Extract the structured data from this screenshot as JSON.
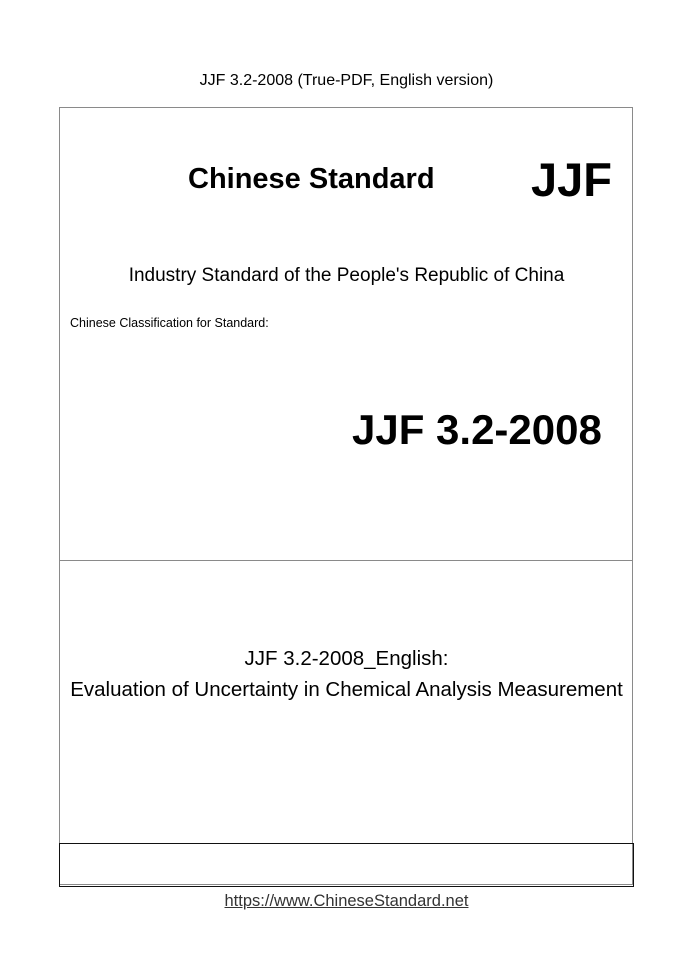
{
  "header": "JJF 3.2-2008 (True-PDF, English version)",
  "cover": {
    "title": "Chinese Standard",
    "prefix": "JJF",
    "industry": "Industry Standard of the People's Republic of China",
    "classification": "Chinese Classification for Standard:",
    "code": "JJF 3.2-2008",
    "doc_title_line1": "JJF 3.2-2008_English:",
    "doc_title_line2": "Evaluation of Uncertainty in Chemical Analysis Measurement"
  },
  "footer": {
    "url": "https://www.ChineseStandard.net"
  }
}
